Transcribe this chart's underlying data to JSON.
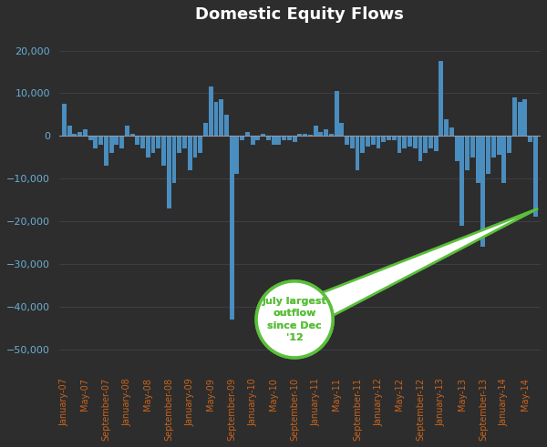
{
  "title": "Domestic Equity Flows",
  "title_color": "#ffffff",
  "background_color": "#2d2d2d",
  "plot_bg_color": "#2d2d2d",
  "bar_color": "#4a8dbf",
  "axis_color": "#6aafd4",
  "tick_label_color": "#6aafd4",
  "xlabel_color": "#c8641e",
  "ylim": [
    -55000,
    25000
  ],
  "yticks": [
    20000,
    10000,
    0,
    -10000,
    -20000,
    -30000,
    -40000,
    -50000
  ],
  "annotation_text": "July largest\noutflow\nsince Dec\n'12",
  "annotation_color": "#5abf3a",
  "annotation_bg": "#ffffff",
  "monthly_values": [
    7500,
    2500,
    500,
    1000,
    1500,
    -1000,
    -3000,
    -2000,
    -7000,
    -4000,
    -2000,
    -3000,
    2500,
    500,
    -2000,
    -3000,
    -5000,
    -4000,
    -3000,
    -7000,
    -17000,
    -11000,
    -4000,
    -3000,
    -8000,
    -5000,
    -4000,
    3000,
    11500,
    8000,
    8500,
    5000,
    -43000,
    -9000,
    -1000,
    1000,
    -2000,
    -1000,
    500,
    -1000,
    -2000,
    -2000,
    -1000,
    -1000,
    -1500,
    500,
    500,
    200,
    2500,
    1000,
    1500,
    500,
    10500,
    3000,
    -2000,
    -3000,
    -8000,
    -4000,
    -2500,
    -2000,
    -3000,
    -1500,
    -1000,
    -1000,
    -4000,
    -3000,
    -2500,
    -3000,
    -6000,
    -4000,
    -3000,
    -3500,
    17500,
    4000,
    2000,
    -6000,
    -21000,
    -8000,
    -5000,
    -11000,
    -26000,
    -9000,
    -5000,
    -4500,
    -11000,
    -4000,
    9000,
    8000,
    8500,
    -1500,
    -19000
  ]
}
